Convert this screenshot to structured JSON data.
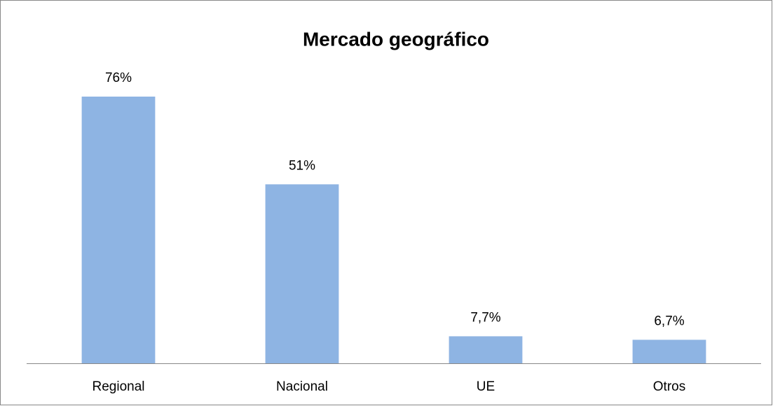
{
  "chart_data": {
    "type": "bar",
    "title": "Mercado geográfico",
    "categories": [
      "Regional",
      "Nacional",
      "UE",
      "Otros"
    ],
    "values": [
      76,
      51,
      7.7,
      6.7
    ],
    "value_labels": [
      "76%",
      "51%",
      "7,7%",
      "6,7%"
    ],
    "color": "#8eb4e3"
  }
}
